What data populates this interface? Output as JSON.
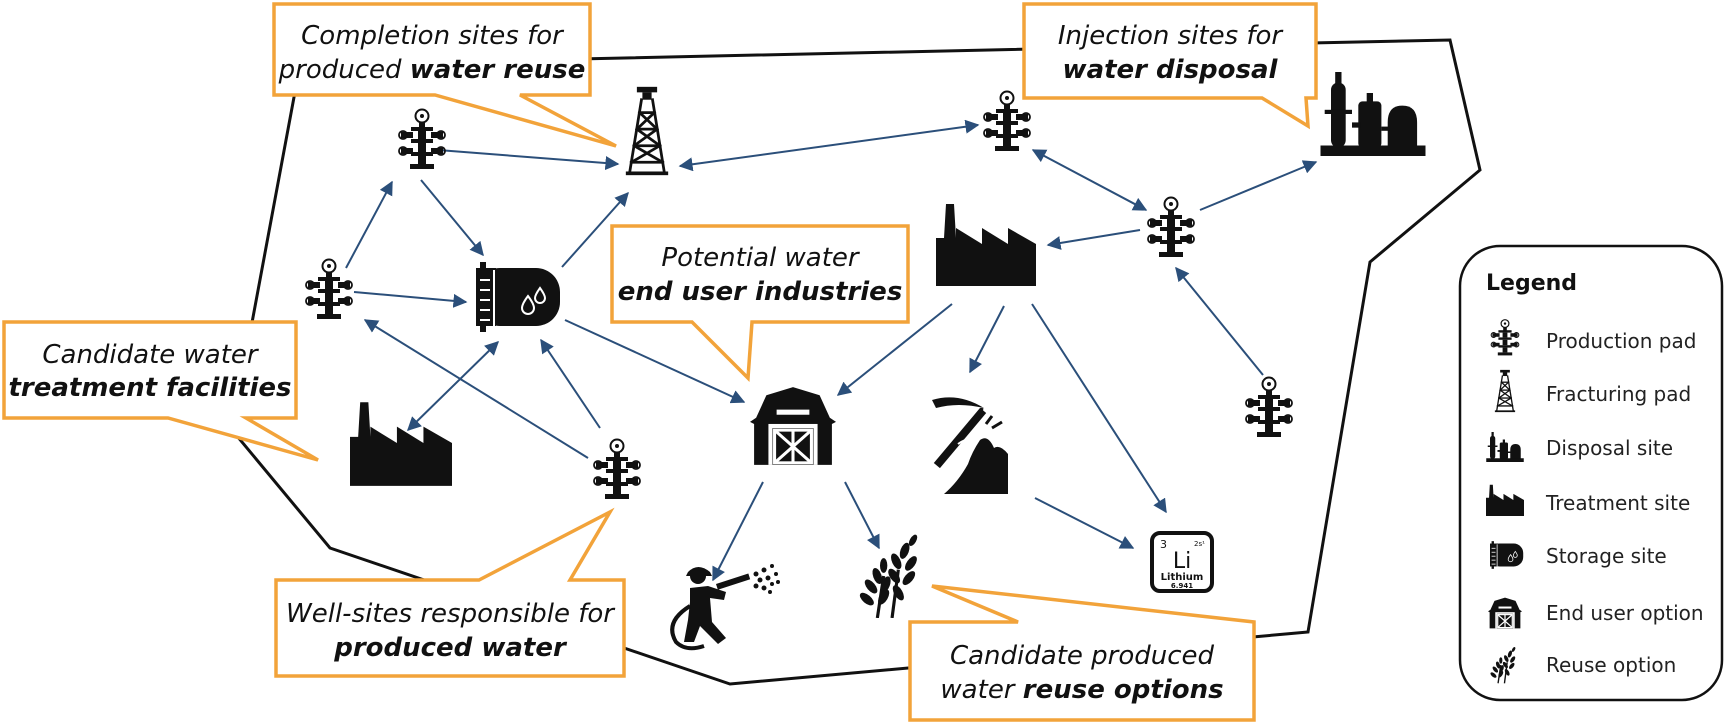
{
  "colors": {
    "arrow": "#2b4f7a",
    "callout_border": "#f2a33a",
    "icon": "#111111",
    "boundary": "#111111"
  },
  "callouts": [
    {
      "id": "completion",
      "line1": "Completion sites for",
      "line2_pre": "produced ",
      "line2_bold": "water reuse",
      "line1_bold": ""
    },
    {
      "id": "injection",
      "line1": "Injection sites for",
      "line2_pre": "",
      "line2_bold": "water disposal",
      "line1_bold": ""
    },
    {
      "id": "treatment",
      "line1": "Candidate water",
      "line2_pre": "",
      "line2_bold": "treatment facilities",
      "line1_bold": ""
    },
    {
      "id": "enduser",
      "line1": "Potential water",
      "line2_pre": "",
      "line2_bold": "end user industries",
      "line1_bold": ""
    },
    {
      "id": "wellsites",
      "line1": "Well-sites responsible for",
      "line2_pre": "",
      "line2_bold": "produced water",
      "line1_bold": ""
    },
    {
      "id": "reuse",
      "line1": "Candidate produced",
      "line2_pre": "water ",
      "line2_bold": "reuse options",
      "line1_bold": ""
    }
  ],
  "lithium": {
    "number": "3",
    "symbol": "Li",
    "name": "Lithium",
    "mass": "6.941",
    "config": "2s¹"
  },
  "legend": {
    "title": "Legend",
    "items": [
      {
        "label": "Production pad",
        "icon": "wellhead-icon"
      },
      {
        "label": "Fracturing pad",
        "icon": "derrick-icon"
      },
      {
        "label": "Disposal site",
        "icon": "refinery-icon"
      },
      {
        "label": "Treatment site",
        "icon": "factory-icon"
      },
      {
        "label": "Storage site",
        "icon": "tank-icon"
      },
      {
        "label": "End user option",
        "icon": "barn-icon"
      },
      {
        "label": "Reuse option",
        "icon": "wheat-icon"
      }
    ]
  }
}
